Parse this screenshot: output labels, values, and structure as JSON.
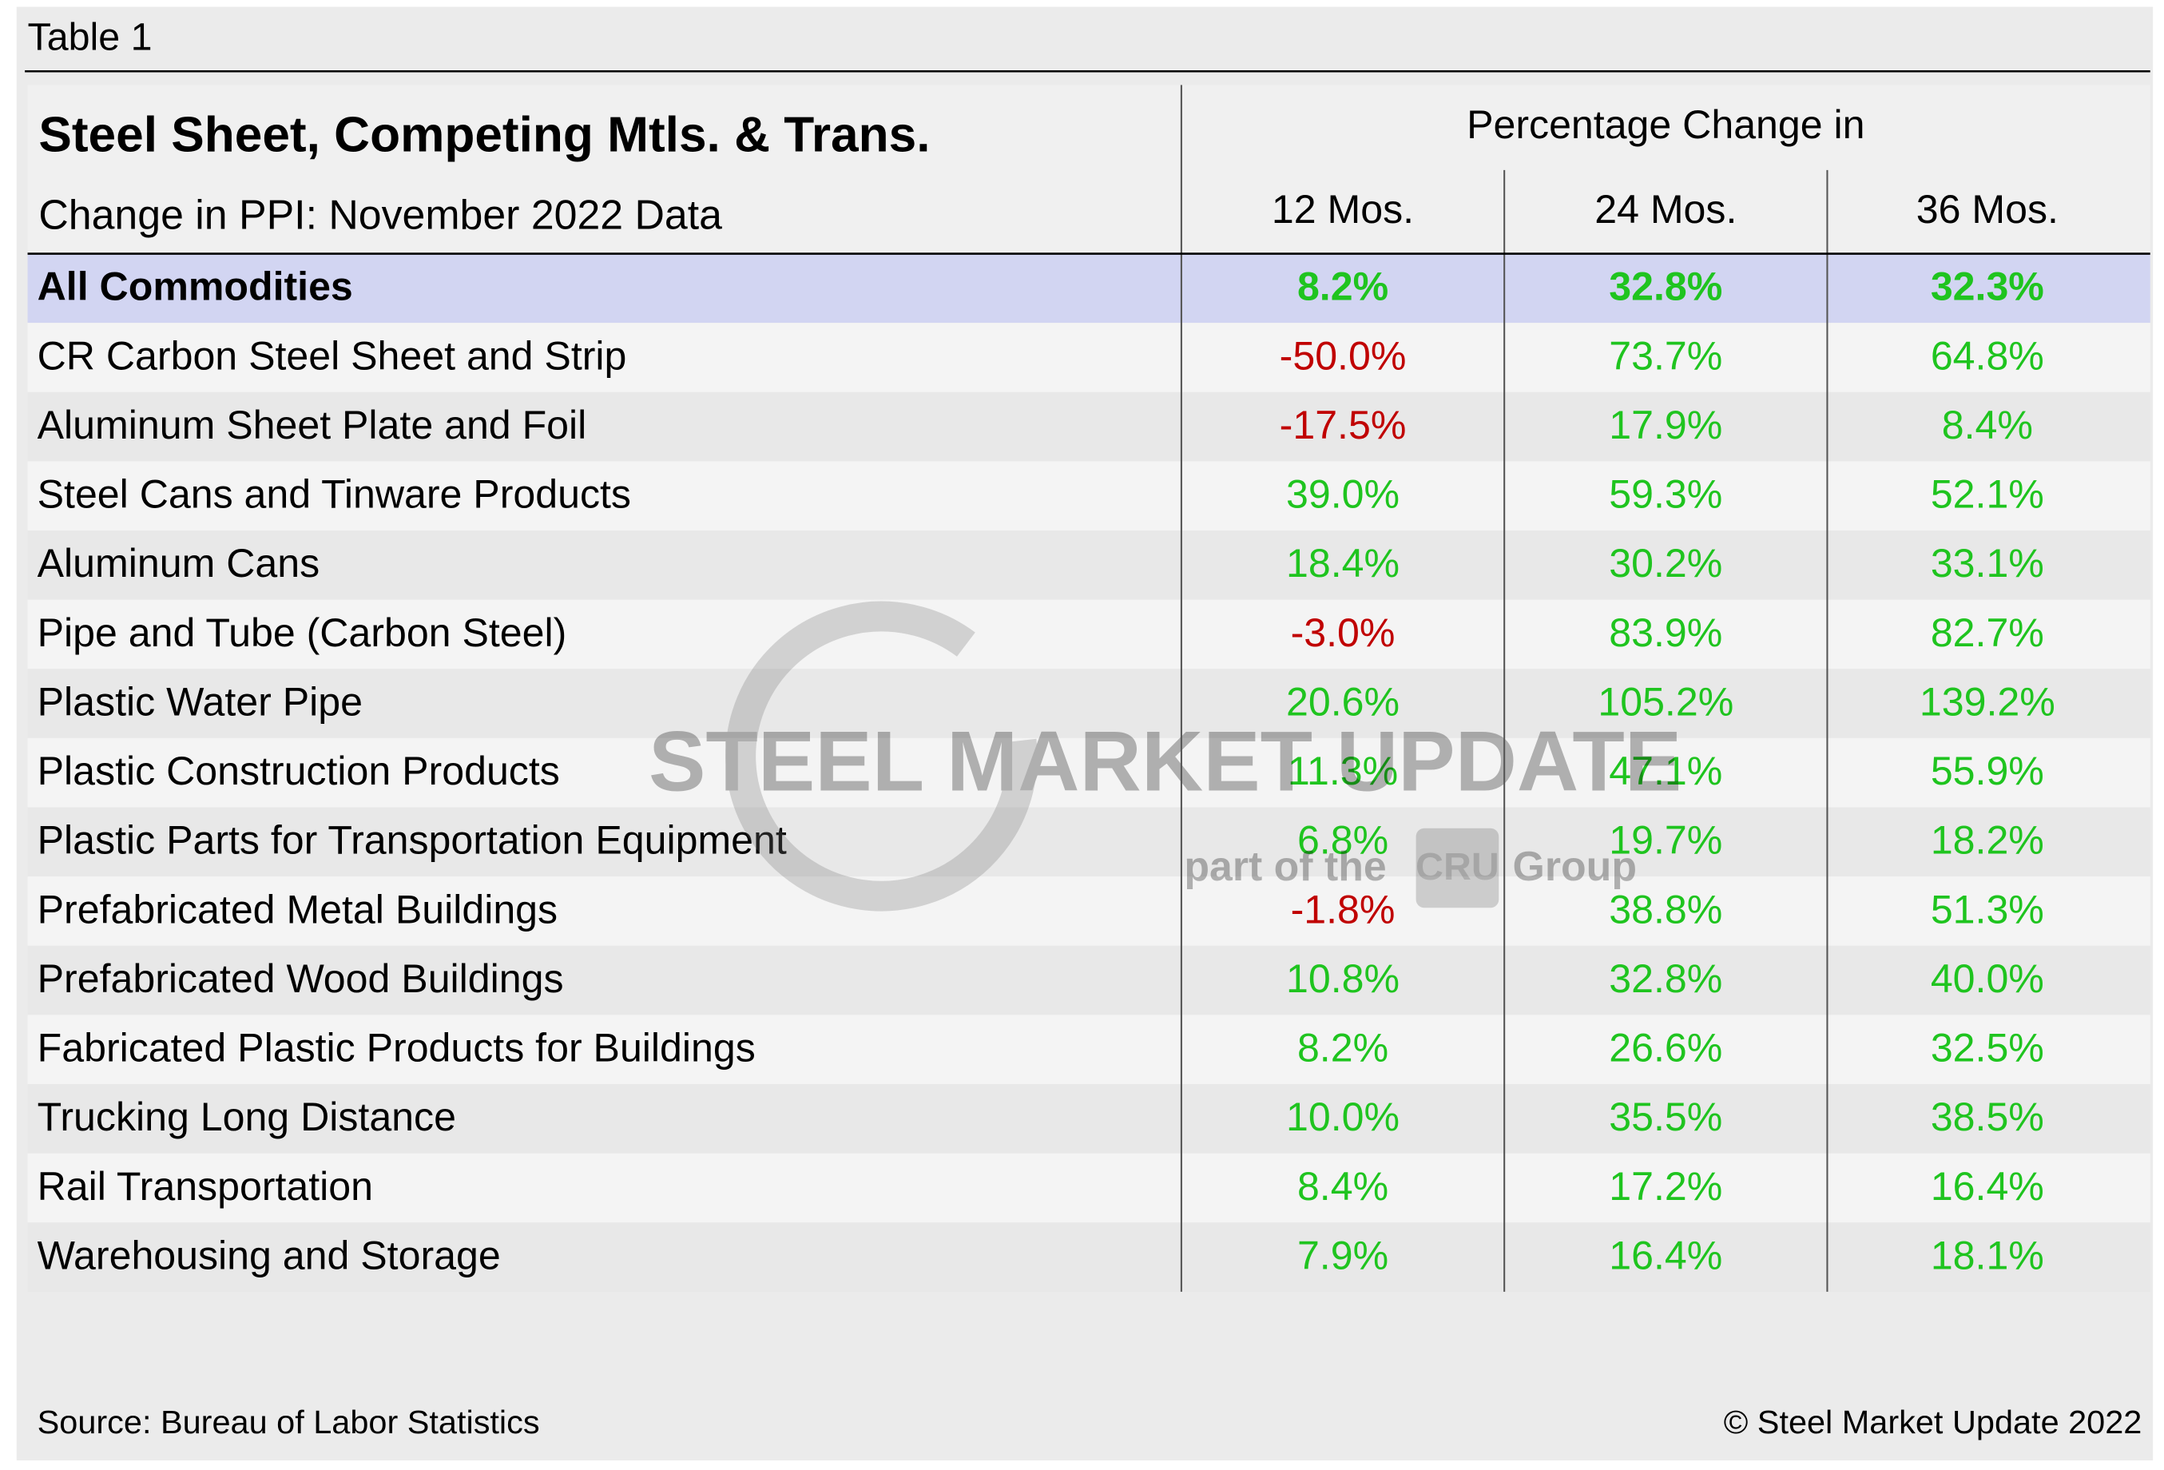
{
  "header": {
    "label": "Table 1",
    "title": "Steel Sheet, Competing Mtls. & Trans.",
    "subtitle": "Change in PPI: November 2022 Data",
    "group_heading": "Percentage Change in"
  },
  "table": {
    "columns": [
      "12 Mos.",
      "24 Mos.",
      "36 Mos."
    ],
    "rows": [
      [
        "All Commodities",
        "8.2%",
        "32.8%",
        "32.3%"
      ],
      [
        "CR Carbon Steel Sheet and Strip",
        "-50.0%",
        "73.7%",
        "64.8%"
      ],
      [
        "Aluminum Sheet Plate and Foil",
        "-17.5%",
        "17.9%",
        "8.4%"
      ],
      [
        "Steel Cans and Tinware Products",
        "39.0%",
        "59.3%",
        "52.1%"
      ],
      [
        "Aluminum Cans",
        "18.4%",
        "30.2%",
        "33.1%"
      ],
      [
        "Pipe and Tube (Carbon Steel)",
        "-3.0%",
        "83.9%",
        "82.7%"
      ],
      [
        "Plastic Water Pipe",
        "20.6%",
        "105.2%",
        "139.2%"
      ],
      [
        "Plastic Construction Products",
        "11.3%",
        "47.1%",
        "55.9%"
      ],
      [
        "Plastic Parts for Transportation Equipment",
        "6.8%",
        "19.7%",
        "18.2%"
      ],
      [
        "Prefabricated Metal Buildings",
        "-1.8%",
        "38.8%",
        "51.3%"
      ],
      [
        "Prefabricated Wood Buildings",
        "10.8%",
        "32.8%",
        "40.0%"
      ],
      [
        "Fabricated Plastic Products for Buildings",
        "8.2%",
        "26.6%",
        "32.5%"
      ],
      [
        "Trucking Long Distance",
        "10.0%",
        "35.5%",
        "38.5%"
      ],
      [
        "Rail Transportation",
        "8.4%",
        "17.2%",
        "16.4%"
      ],
      [
        "Warehousing and Storage",
        "7.9%",
        "16.4%",
        "18.1%"
      ]
    ],
    "colors": {
      "positive": "#1fc41f",
      "negative": "#c00000"
    }
  },
  "watermark": {
    "brand": "STEEL MARKET UPDATE",
    "tagline_before": "part of the",
    "logo": "CRU",
    "tagline_after": "Group"
  },
  "footer": {
    "source": "Source: Bureau of Labor Statistics",
    "copyright": "© Steel Market Update 2022"
  }
}
